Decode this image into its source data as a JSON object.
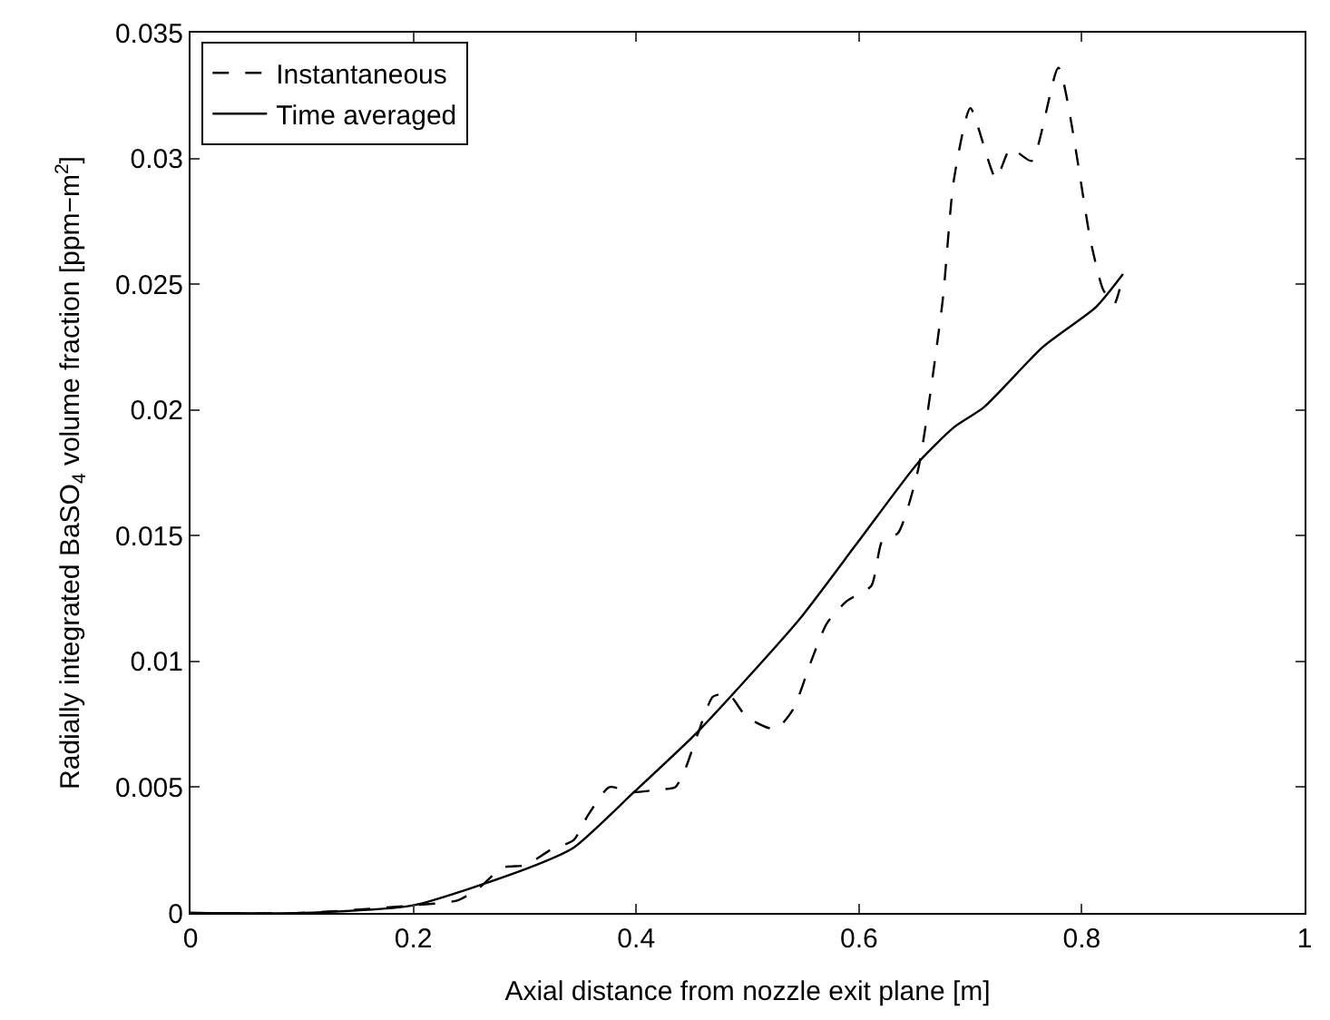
{
  "chart_data": {
    "type": "line",
    "xlabel": "Axial distance from nozzle exit plane [m]",
    "ylabel": "Radially integrated BaSO$_{4}$ volume fraction [ppm−m$^{2}$]",
    "xlim": [
      0,
      1
    ],
    "xticks": [
      0,
      0.2,
      0.4,
      0.6,
      0.8,
      1
    ],
    "ylim": [
      0,
      0.035
    ],
    "yticks": [
      0,
      0.005,
      0.01,
      0.015,
      0.02,
      0.025,
      0.03,
      0.035
    ],
    "legend": "top left",
    "marker": "none",
    "series": [
      {
        "name": "Instantaneous",
        "color": "#000000",
        "line_style": "dashed",
        "x": [
          0,
          0.1,
          0.2,
          0.24,
          0.259,
          0.28,
          0.301,
          0.323,
          0.344,
          0.357,
          0.376,
          0.397,
          0.419,
          0.435,
          0.443,
          0.456,
          0.469,
          0.483,
          0.499,
          0.525,
          0.541,
          0.557,
          0.571,
          0.589,
          0.611,
          0.621,
          0.635,
          0.653,
          0.675,
          0.685,
          0.7,
          0.723,
          0.736,
          0.755,
          0.779,
          0.808,
          0.819,
          0.829,
          0.834
        ],
        "values": [
          0,
          0,
          0.0003,
          0.0005,
          0.001,
          0.0018,
          0.0019,
          0.0025,
          0.0029,
          0.0039,
          0.005,
          0.0048,
          0.0049,
          0.005,
          0.0056,
          0.0072,
          0.0086,
          0.0087,
          0.0078,
          0.0073,
          0.0081,
          0.01,
          0.0115,
          0.0124,
          0.013,
          0.0148,
          0.0151,
          0.0176,
          0.0243,
          0.0291,
          0.032,
          0.0292,
          0.0304,
          0.0299,
          0.0336,
          0.0267,
          0.0248,
          0.0242,
          0.0248
        ]
      },
      {
        "name": "Time averaged",
        "color": "#000000",
        "line_style": "solid",
        "x": [
          0,
          0.1,
          0.2,
          0.304,
          0.344,
          0.398,
          0.453,
          0.495,
          0.547,
          0.6,
          0.653,
          0.685,
          0.712,
          0.765,
          0.813,
          0.837
        ],
        "values": [
          0,
          0,
          0.0003,
          0.0018,
          0.0026,
          0.0048,
          0.0071,
          0.0091,
          0.0117,
          0.0148,
          0.0179,
          0.0193,
          0.0201,
          0.0225,
          0.0241,
          0.0254
        ]
      }
    ]
  }
}
